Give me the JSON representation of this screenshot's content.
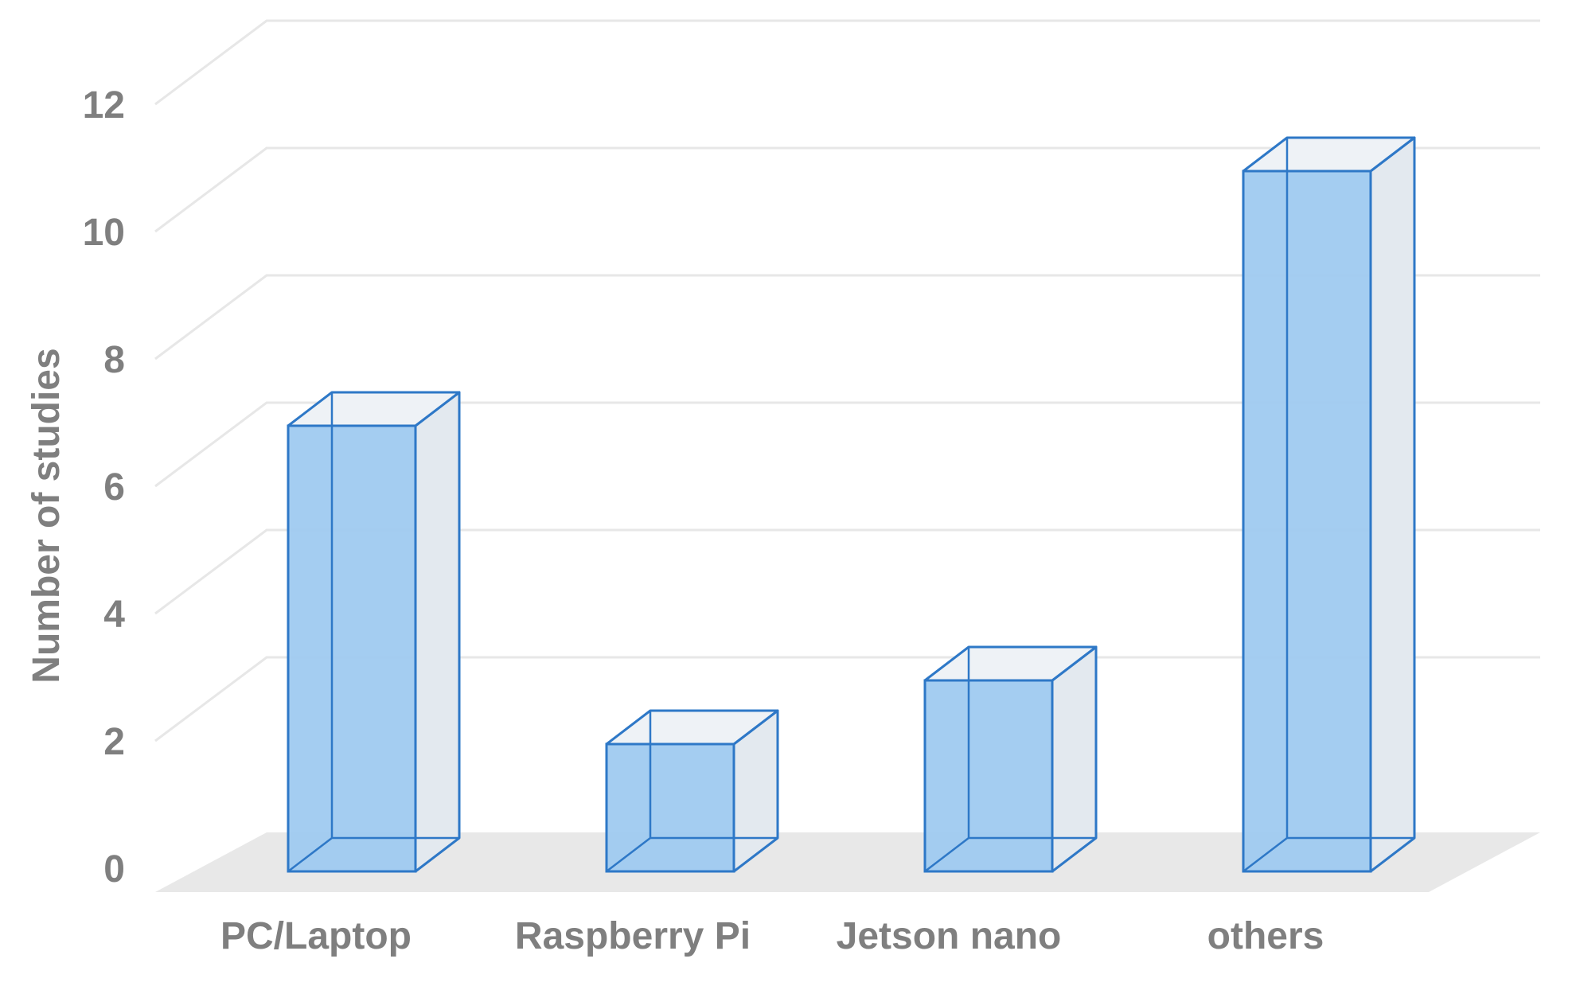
{
  "chart_data": {
    "type": "bar",
    "style": "3d-column",
    "categories": [
      "PC/Laptop",
      "Raspberry Pi",
      "Jetson nano",
      "others"
    ],
    "values": [
      7,
      2,
      3,
      11
    ],
    "ylabel": "Number of studies",
    "xlabel": "",
    "ylim": [
      0,
      12
    ],
    "yticks": [
      "0",
      "2",
      "4",
      "6",
      "8",
      "10",
      "12"
    ],
    "grid": true,
    "legend": "none"
  },
  "colors": {
    "bar_front": "#9fcaf0",
    "bar_side": "#e3e9ef",
    "bar_top": "#eef2f6",
    "bar_edge": "#2e78c7",
    "gridline": "#e7e7e7",
    "floor": "#e8e8e8",
    "text": "#7f7f7f"
  }
}
